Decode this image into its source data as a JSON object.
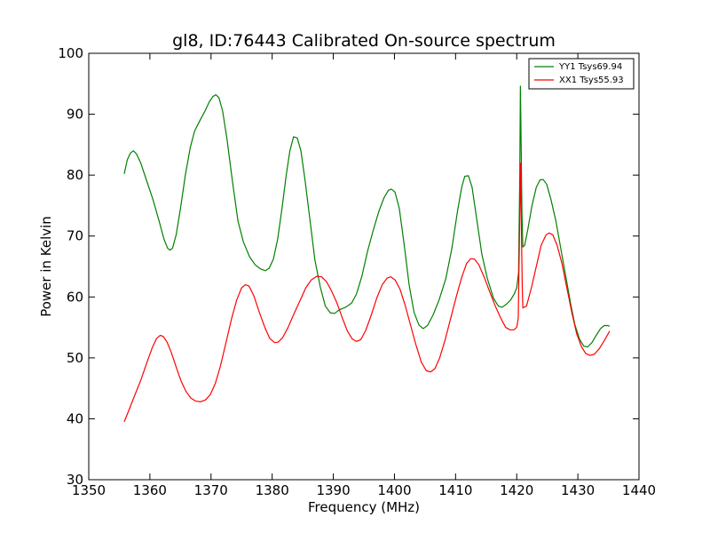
{
  "colors": {
    "background": "#ffffff",
    "axes": "#000000",
    "yy1": "#008000",
    "xx1": "#ff0000"
  },
  "chart_data": {
    "type": "line",
    "title": "gl8, ID:76443 Calibrated On-source spectrum",
    "xlabel": "Frequency (MHz)",
    "ylabel": "Power in Kelvin",
    "xlim": [
      1350,
      1440
    ],
    "ylim": [
      30,
      100
    ],
    "x_ticks": [
      1350,
      1360,
      1370,
      1380,
      1390,
      1400,
      1410,
      1420,
      1430,
      1440
    ],
    "y_ticks": [
      30,
      40,
      50,
      60,
      70,
      80,
      90,
      100
    ],
    "grid": false,
    "legend_position": "top-right",
    "series": [
      {
        "name": "YY1 Tsys69.94",
        "color": "#008000",
        "points": [
          [
            1355.8,
            80.2
          ],
          [
            1356.3,
            82.5
          ],
          [
            1356.8,
            83.6
          ],
          [
            1357.3,
            84.0
          ],
          [
            1357.8,
            83.5
          ],
          [
            1358.5,
            82.0
          ],
          [
            1359.5,
            79.0
          ],
          [
            1360.5,
            76.0
          ],
          [
            1361.5,
            72.5
          ],
          [
            1362.3,
            69.5
          ],
          [
            1362.9,
            68.0
          ],
          [
            1363.3,
            67.7
          ],
          [
            1363.7,
            68.0
          ],
          [
            1364.3,
            70.2
          ],
          [
            1365.0,
            74.5
          ],
          [
            1365.8,
            80.0
          ],
          [
            1366.6,
            84.5
          ],
          [
            1367.3,
            87.2
          ],
          [
            1368.2,
            89.0
          ],
          [
            1369.0,
            90.5
          ],
          [
            1369.7,
            92.0
          ],
          [
            1370.3,
            92.9
          ],
          [
            1370.8,
            93.2
          ],
          [
            1371.3,
            92.7
          ],
          [
            1371.9,
            90.5
          ],
          [
            1372.6,
            86.0
          ],
          [
            1373.5,
            79.0
          ],
          [
            1374.4,
            72.5
          ],
          [
            1375.3,
            69.0
          ],
          [
            1376.3,
            66.6
          ],
          [
            1377.2,
            65.3
          ],
          [
            1378.1,
            64.6
          ],
          [
            1378.9,
            64.3
          ],
          [
            1379.5,
            64.7
          ],
          [
            1380.2,
            66.2
          ],
          [
            1380.9,
            69.5
          ],
          [
            1381.6,
            74.5
          ],
          [
            1382.3,
            80.0
          ],
          [
            1382.9,
            84.0
          ],
          [
            1383.5,
            86.3
          ],
          [
            1384.1,
            86.1
          ],
          [
            1384.7,
            84.0
          ],
          [
            1385.4,
            79.0
          ],
          [
            1386.2,
            72.5
          ],
          [
            1387.0,
            66.0
          ],
          [
            1387.9,
            61.5
          ],
          [
            1388.7,
            58.5
          ],
          [
            1389.5,
            57.4
          ],
          [
            1390.2,
            57.3
          ],
          [
            1391.0,
            57.9
          ],
          [
            1392.0,
            58.3
          ],
          [
            1393.0,
            59.0
          ],
          [
            1393.8,
            60.5
          ],
          [
            1394.7,
            63.5
          ],
          [
            1395.6,
            67.5
          ],
          [
            1396.6,
            71.2
          ],
          [
            1397.5,
            74.2
          ],
          [
            1398.3,
            76.3
          ],
          [
            1399.0,
            77.5
          ],
          [
            1399.5,
            77.7
          ],
          [
            1400.1,
            77.2
          ],
          [
            1400.8,
            74.5
          ],
          [
            1401.6,
            68.5
          ],
          [
            1402.4,
            62.0
          ],
          [
            1403.2,
            57.5
          ],
          [
            1404.0,
            55.4
          ],
          [
            1404.7,
            54.8
          ],
          [
            1405.4,
            55.3
          ],
          [
            1406.3,
            57.0
          ],
          [
            1407.3,
            59.5
          ],
          [
            1408.4,
            63.0
          ],
          [
            1409.4,
            68.0
          ],
          [
            1410.3,
            74.0
          ],
          [
            1411.0,
            78.0
          ],
          [
            1411.5,
            79.8
          ],
          [
            1412.1,
            79.9
          ],
          [
            1412.7,
            78.0
          ],
          [
            1413.5,
            72.5
          ],
          [
            1414.3,
            67.0
          ],
          [
            1415.2,
            63.0
          ],
          [
            1416.2,
            59.8
          ],
          [
            1417.0,
            58.5
          ],
          [
            1417.6,
            58.3
          ],
          [
            1418.3,
            58.8
          ],
          [
            1419.0,
            59.5
          ],
          [
            1419.6,
            60.5
          ],
          [
            1420.0,
            61.5
          ],
          [
            1420.3,
            64.0
          ],
          [
            1420.5,
            80.0
          ],
          [
            1420.6,
            94.6
          ],
          [
            1420.7,
            87.0
          ],
          [
            1420.85,
            74.0
          ],
          [
            1421.0,
            68.2
          ],
          [
            1421.3,
            68.5
          ],
          [
            1421.8,
            71.0
          ],
          [
            1422.5,
            75.0
          ],
          [
            1423.2,
            78.0
          ],
          [
            1423.8,
            79.2
          ],
          [
            1424.3,
            79.3
          ],
          [
            1424.9,
            78.5
          ],
          [
            1425.6,
            76.0
          ],
          [
            1426.4,
            72.5
          ],
          [
            1427.2,
            68.0
          ],
          [
            1428.0,
            63.5
          ],
          [
            1428.8,
            59.0
          ],
          [
            1429.5,
            55.5
          ],
          [
            1430.3,
            53.0
          ],
          [
            1431.0,
            51.9
          ],
          [
            1431.6,
            51.8
          ],
          [
            1432.3,
            52.5
          ],
          [
            1433.0,
            53.7
          ],
          [
            1433.7,
            54.8
          ],
          [
            1434.3,
            55.3
          ],
          [
            1434.9,
            55.3
          ],
          [
            1435.2,
            55.2
          ]
        ]
      },
      {
        "name": "XX1 Tsys55.93",
        "color": "#ff0000",
        "points": [
          [
            1355.8,
            39.5
          ],
          [
            1356.6,
            41.5
          ],
          [
            1357.5,
            43.8
          ],
          [
            1358.5,
            46.3
          ],
          [
            1359.5,
            49.2
          ],
          [
            1360.4,
            51.7
          ],
          [
            1361.1,
            53.2
          ],
          [
            1361.7,
            53.7
          ],
          [
            1362.2,
            53.5
          ],
          [
            1362.8,
            52.6
          ],
          [
            1363.5,
            50.9
          ],
          [
            1364.3,
            48.5
          ],
          [
            1365.1,
            46.2
          ],
          [
            1365.9,
            44.5
          ],
          [
            1366.7,
            43.4
          ],
          [
            1367.5,
            42.9
          ],
          [
            1368.3,
            42.8
          ],
          [
            1369.1,
            43.1
          ],
          [
            1369.9,
            44.0
          ],
          [
            1370.7,
            45.8
          ],
          [
            1371.5,
            48.5
          ],
          [
            1372.4,
            52.3
          ],
          [
            1373.3,
            56.2
          ],
          [
            1374.2,
            59.5
          ],
          [
            1375.0,
            61.5
          ],
          [
            1375.6,
            62.0
          ],
          [
            1376.2,
            61.8
          ],
          [
            1377.0,
            60.2
          ],
          [
            1377.9,
            57.5
          ],
          [
            1378.8,
            55.0
          ],
          [
            1379.6,
            53.2
          ],
          [
            1380.4,
            52.5
          ],
          [
            1381.0,
            52.6
          ],
          [
            1381.7,
            53.3
          ],
          [
            1382.6,
            55.0
          ],
          [
            1383.6,
            57.3
          ],
          [
            1384.6,
            59.5
          ],
          [
            1385.5,
            61.5
          ],
          [
            1386.4,
            62.8
          ],
          [
            1387.3,
            63.4
          ],
          [
            1388.1,
            63.3
          ],
          [
            1388.9,
            62.5
          ],
          [
            1389.7,
            61.0
          ],
          [
            1390.6,
            59.0
          ],
          [
            1391.5,
            56.5
          ],
          [
            1392.3,
            54.4
          ],
          [
            1393.1,
            53.1
          ],
          [
            1393.8,
            52.7
          ],
          [
            1394.5,
            53.0
          ],
          [
            1395.3,
            54.5
          ],
          [
            1396.2,
            57.0
          ],
          [
            1397.1,
            59.8
          ],
          [
            1398.0,
            62.0
          ],
          [
            1398.8,
            63.1
          ],
          [
            1399.4,
            63.3
          ],
          [
            1400.1,
            62.8
          ],
          [
            1400.9,
            61.3
          ],
          [
            1401.7,
            58.8
          ],
          [
            1402.6,
            55.5
          ],
          [
            1403.5,
            52.2
          ],
          [
            1404.4,
            49.3
          ],
          [
            1405.2,
            47.9
          ],
          [
            1405.9,
            47.7
          ],
          [
            1406.6,
            48.2
          ],
          [
            1407.4,
            50.0
          ],
          [
            1408.3,
            53.0
          ],
          [
            1409.2,
            56.5
          ],
          [
            1410.1,
            60.0
          ],
          [
            1411.0,
            63.2
          ],
          [
            1411.8,
            65.5
          ],
          [
            1412.5,
            66.3
          ],
          [
            1413.1,
            66.2
          ],
          [
            1413.8,
            65.3
          ],
          [
            1414.7,
            63.2
          ],
          [
            1415.6,
            60.8
          ],
          [
            1416.5,
            58.5
          ],
          [
            1417.4,
            56.5
          ],
          [
            1418.2,
            55.0
          ],
          [
            1418.9,
            54.6
          ],
          [
            1419.5,
            54.6
          ],
          [
            1420.0,
            55.0
          ],
          [
            1420.25,
            56.5
          ],
          [
            1420.45,
            70.0
          ],
          [
            1420.6,
            82.0
          ],
          [
            1420.75,
            72.0
          ],
          [
            1420.9,
            62.0
          ],
          [
            1421.0,
            58.2
          ],
          [
            1421.6,
            58.5
          ],
          [
            1422.4,
            61.5
          ],
          [
            1423.2,
            65.0
          ],
          [
            1424.0,
            68.5
          ],
          [
            1424.8,
            70.2
          ],
          [
            1425.3,
            70.5
          ],
          [
            1425.9,
            70.2
          ],
          [
            1426.6,
            68.5
          ],
          [
            1427.4,
            65.5
          ],
          [
            1428.2,
            61.5
          ],
          [
            1429.0,
            57.5
          ],
          [
            1429.8,
            54.0
          ],
          [
            1430.6,
            51.8
          ],
          [
            1431.3,
            50.7
          ],
          [
            1432.0,
            50.4
          ],
          [
            1432.7,
            50.6
          ],
          [
            1433.5,
            51.5
          ],
          [
            1434.3,
            52.8
          ],
          [
            1435.2,
            54.4
          ]
        ]
      }
    ]
  }
}
